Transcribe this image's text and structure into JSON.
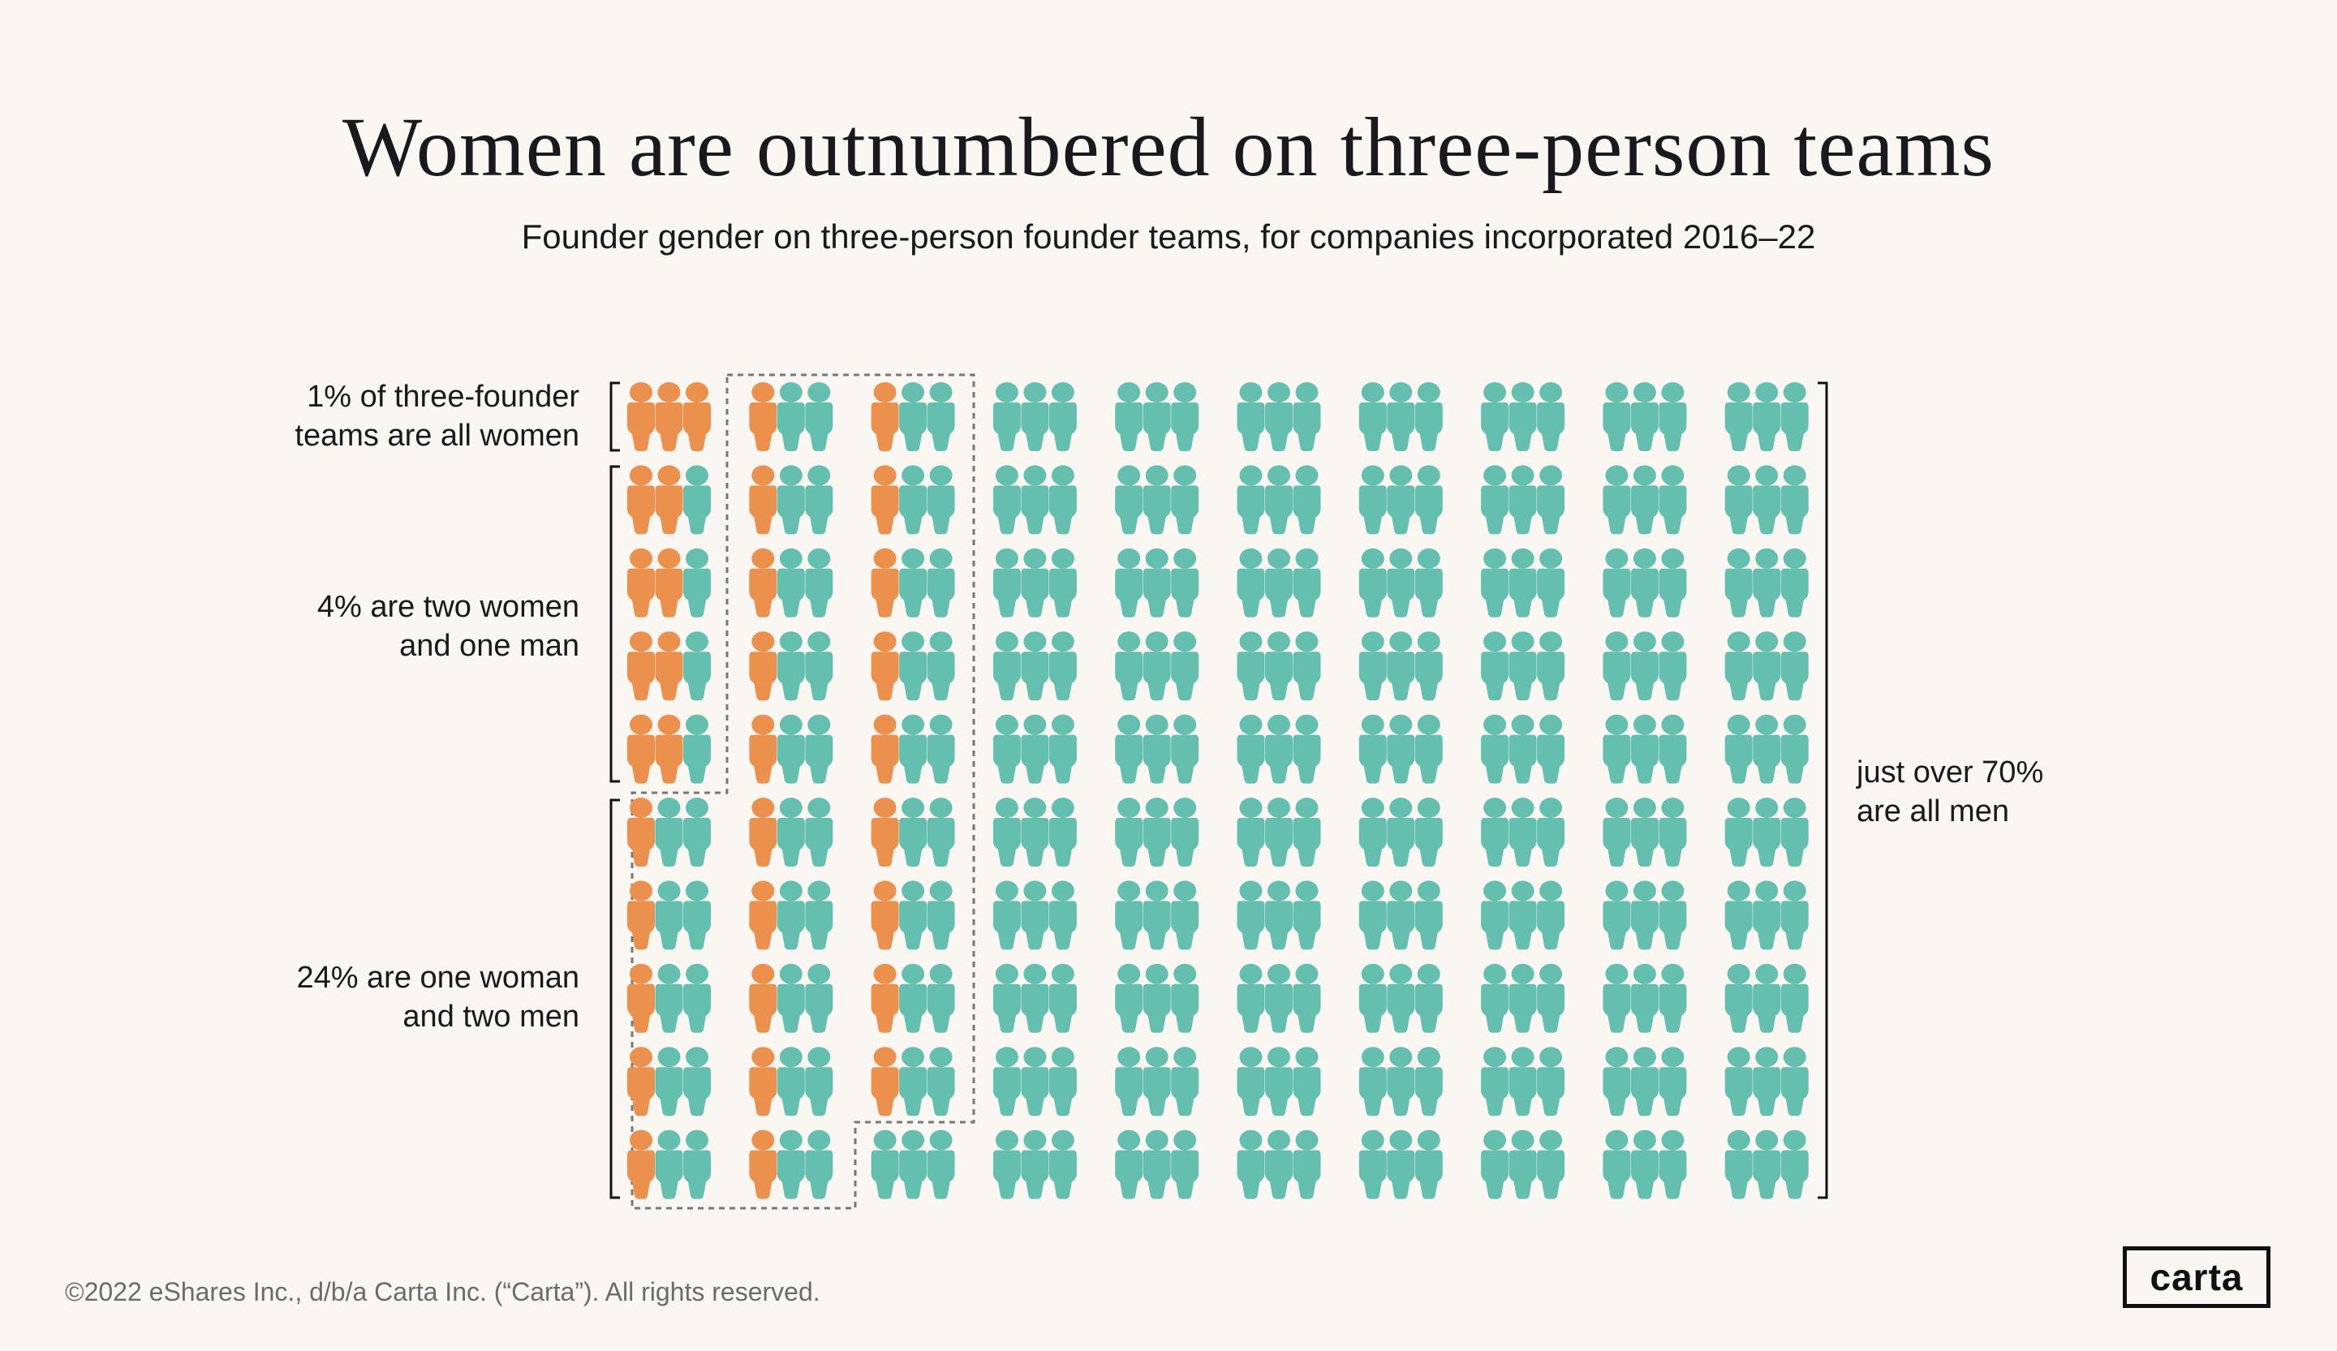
{
  "header": {
    "title": "Women are outnumbered on three-person teams",
    "subtitle": "Founder gender on three-person founder teams, for companies incorporated 2016–22"
  },
  "chart_data": {
    "type": "pictogram",
    "title": "Women are outnumbered on three-person teams",
    "subtitle": "Founder gender on three-person founder teams, for companies incorporated 2016–22",
    "unit": "one three-person founder team (1%)",
    "colors": {
      "woman": "#EC914D",
      "man": "#64BFAF",
      "background": "#FAF7F3"
    },
    "categories": [
      {
        "name": "all women",
        "percent": 1,
        "label_lines": [
          "1% of three-founder",
          "teams are all women"
        ]
      },
      {
        "name": "two women and one man",
        "percent": 4,
        "label_lines": [
          "4% are two women",
          "and one man"
        ]
      },
      {
        "name": "one woman and two men",
        "percent": 24,
        "label_lines": [
          "24% are one woman",
          "and two men"
        ]
      },
      {
        "name": "all men",
        "percent": 71,
        "label_lines": [
          "just over 70%",
          "are all men"
        ]
      }
    ],
    "grid_women_per_team": [
      [
        3,
        1,
        1,
        0,
        0,
        0,
        0,
        0,
        0,
        0
      ],
      [
        2,
        1,
        1,
        0,
        0,
        0,
        0,
        0,
        0,
        0
      ],
      [
        2,
        1,
        1,
        0,
        0,
        0,
        0,
        0,
        0,
        0
      ],
      [
        2,
        1,
        1,
        0,
        0,
        0,
        0,
        0,
        0,
        0
      ],
      [
        2,
        1,
        1,
        0,
        0,
        0,
        0,
        0,
        0,
        0
      ],
      [
        1,
        1,
        1,
        0,
        0,
        0,
        0,
        0,
        0,
        0
      ],
      [
        1,
        1,
        1,
        0,
        0,
        0,
        0,
        0,
        0,
        0
      ],
      [
        1,
        1,
        1,
        0,
        0,
        0,
        0,
        0,
        0,
        0
      ],
      [
        1,
        1,
        1,
        0,
        0,
        0,
        0,
        0,
        0,
        0
      ],
      [
        1,
        1,
        0,
        0,
        0,
        0,
        0,
        0,
        0,
        0
      ]
    ]
  },
  "footer": {
    "copyright": "©2022 eShares Inc., d/b/a Carta Inc. (“Carta”). All rights reserved.",
    "logo": "carta"
  }
}
